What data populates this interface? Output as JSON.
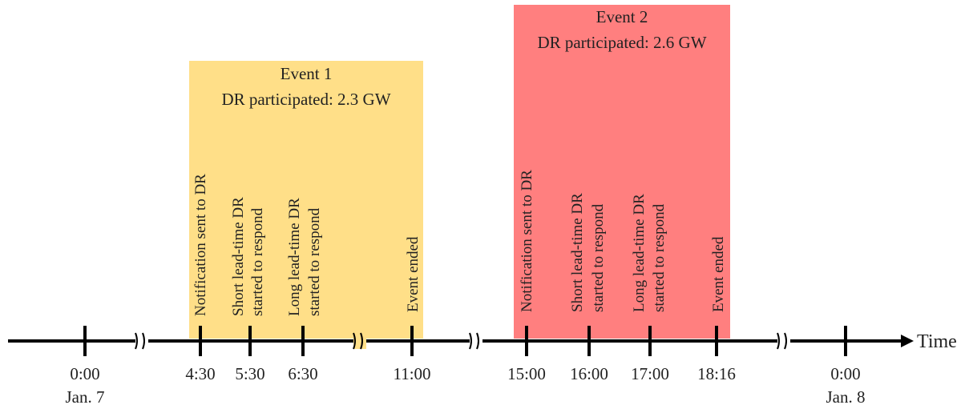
{
  "events": [
    {
      "title": "Event 1",
      "subtitle": "DR participated: 2.3 GW",
      "color": "#FFDF88",
      "milestones": [
        {
          "label": "Notification sent to DR"
        },
        {
          "label": "Short lead-time DR",
          "label2": "started to respond"
        },
        {
          "label": "Long lead-time DR",
          "label2": "started to respond"
        },
        {
          "label": "Event ended"
        }
      ]
    },
    {
      "title": "Event 2",
      "subtitle": "DR participated: 2.6 GW",
      "color": "#FF7F7F",
      "milestones": [
        {
          "label": "Notification sent to DR"
        },
        {
          "label": "Short lead-time DR",
          "label2": "started to respond"
        },
        {
          "label": "Long lead-time DR",
          "label2": "started to respond"
        },
        {
          "label": "Event ended"
        }
      ]
    }
  ],
  "axis": {
    "label": "Time",
    "ticks": [
      {
        "time": "0:00",
        "date": "Jan. 7"
      },
      {
        "time": "4:30"
      },
      {
        "time": "5:30"
      },
      {
        "time": "6:30"
      },
      {
        "time": "11:00"
      },
      {
        "time": "15:00"
      },
      {
        "time": "16:00"
      },
      {
        "time": "17:00"
      },
      {
        "time": "18:16"
      },
      {
        "time": "0:00",
        "date": "Jan. 8"
      }
    ]
  }
}
